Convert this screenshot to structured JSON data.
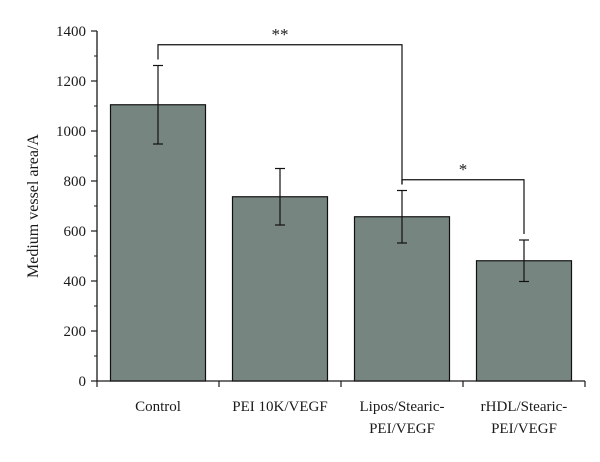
{
  "chart_data": {
    "type": "bar",
    "categories": [
      [
        "Control"
      ],
      [
        "PEI 10K/VEGF"
      ],
      [
        "Lipos/Stearic-",
        "PEI/VEGF"
      ],
      [
        "rHDL/Stearic-",
        "PEI/VEGF"
      ]
    ],
    "values": [
      1105,
      737,
      657,
      481
    ],
    "error": [
      157,
      113,
      105,
      83
    ],
    "ylabel": "Medium vessel area/A",
    "xlabel": "",
    "title": "",
    "ylim": [
      0,
      1400
    ],
    "yticks": [
      0,
      200,
      400,
      600,
      800,
      1000,
      1200,
      1400
    ],
    "bar_color": "#778580",
    "grid": false,
    "significance": [
      {
        "from": 0,
        "to": 2,
        "label": "**",
        "level": 1345
      },
      {
        "from": 2,
        "to": 3,
        "label": "*",
        "level": 805
      }
    ]
  }
}
